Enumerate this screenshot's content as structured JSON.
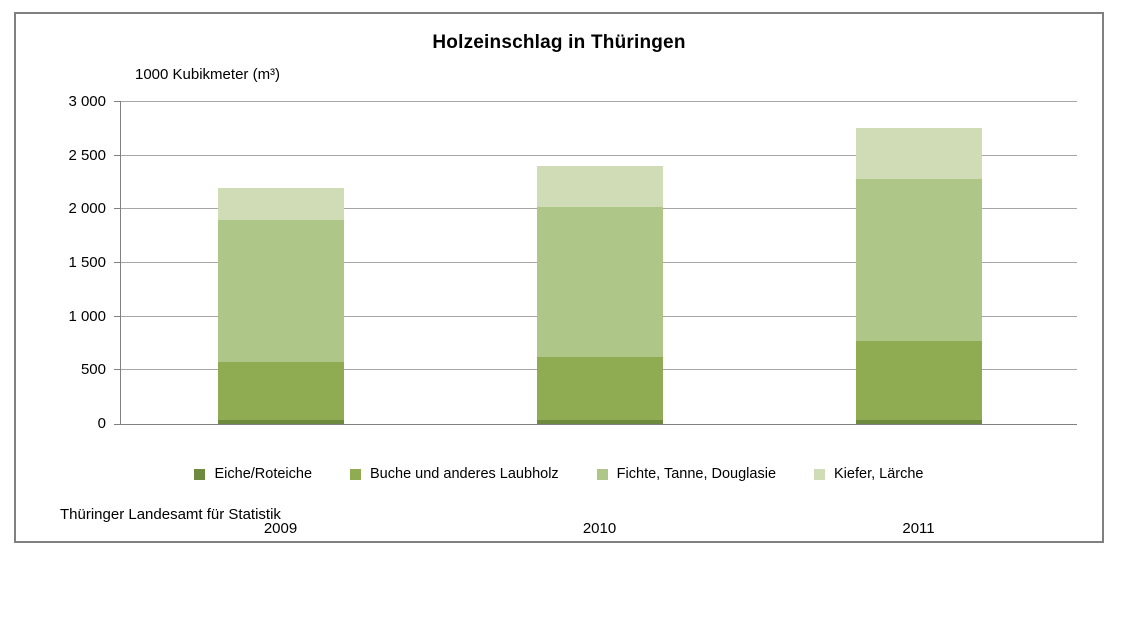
{
  "title": "Holzeinschlag in Thüringen",
  "source": "Thüringer Landesamt für Statistik",
  "chart_data": {
    "type": "bar",
    "stacked": true,
    "title": "Holzeinschlag in Thüringen",
    "unit_label": "1000 Kubikmeter (m³)",
    "ylabel": "1000 Kubikmeter (m³)",
    "xlabel": "",
    "categories": [
      "2009",
      "2010",
      "2011"
    ],
    "series": [
      {
        "name": "Eiche/Roteiche",
        "color": "#6d8a3e",
        "values": [
          40,
          40,
          40
        ]
      },
      {
        "name": "Buche und anderes Laubholz",
        "color": "#90ac53",
        "values": [
          535,
          580,
          730
        ]
      },
      {
        "name": "Fichte, Tanne, Douglasie",
        "color": "#aec687",
        "values": [
          1325,
          1400,
          1510
        ]
      },
      {
        "name": "Kiefer, Lärche",
        "color": "#d0dcb5",
        "values": [
          300,
          380,
          480
        ]
      }
    ],
    "totals": [
      2200,
      2400,
      2760
    ],
    "ylim": [
      0,
      3000
    ],
    "ytick_step": 500,
    "ytick_labels": [
      "0",
      "500",
      "1 000",
      "1 500",
      "2 000",
      "2 500",
      "3 000"
    ],
    "grid": true,
    "legend_position": "bottom",
    "colors": {
      "gridline": "#a6a6a6",
      "axis": "#808080",
      "frame_border": "#808080",
      "text": "#000000",
      "background": "#ffffff"
    }
  }
}
